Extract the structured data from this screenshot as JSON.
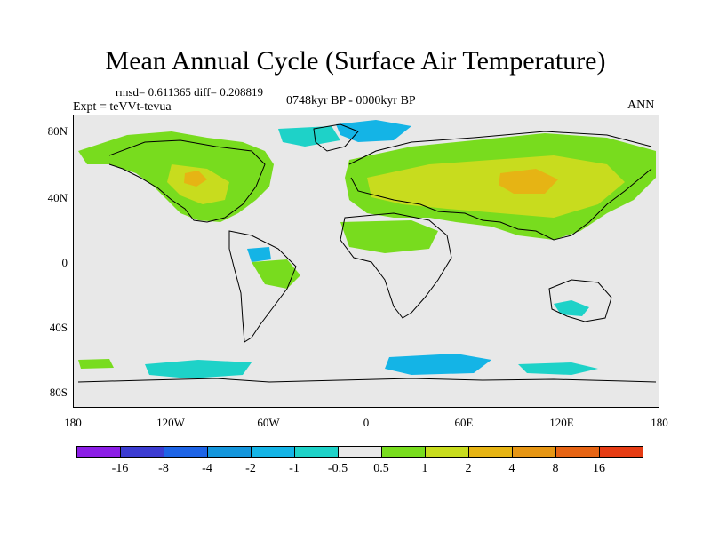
{
  "title": "Mean Annual Cycle (Surface Air Temperature)",
  "stats": "rmsd= 0.611365 diff= 0.208819",
  "expt": "Expt = teVVt-tevua",
  "period": "0748kyr BP - 0000kyr BP",
  "season": "ANN",
  "axes": {
    "lat_labels": [
      "80N",
      "40N",
      "0",
      "40S",
      "80S"
    ],
    "lon_labels": [
      "180",
      "120W",
      "60W",
      "0",
      "60E",
      "120E",
      "180"
    ]
  },
  "colorbar": {
    "colors": [
      "#8c1ee6",
      "#3c3cd2",
      "#1e64e6",
      "#1496dc",
      "#14b4e6",
      "#1ed2c8",
      "#e8e8e8",
      "#78dc1e",
      "#c8dc1e",
      "#e6b414",
      "#e69614",
      "#e66414",
      "#e63c14"
    ],
    "labels": [
      "-16",
      "-8",
      "-4",
      "-2",
      "-1",
      "-0.5",
      "0.5",
      "1",
      "2",
      "4",
      "8",
      "16"
    ]
  },
  "map_colors": {
    "ocean_background": "#e8e8e8",
    "positive_light": "#78dc1e",
    "positive_mid": "#c8dc1e",
    "positive_high": "#e6b414",
    "negative_light": "#1ed2c8",
    "negative_mid": "#14b4e6",
    "coastline": "#000000"
  }
}
